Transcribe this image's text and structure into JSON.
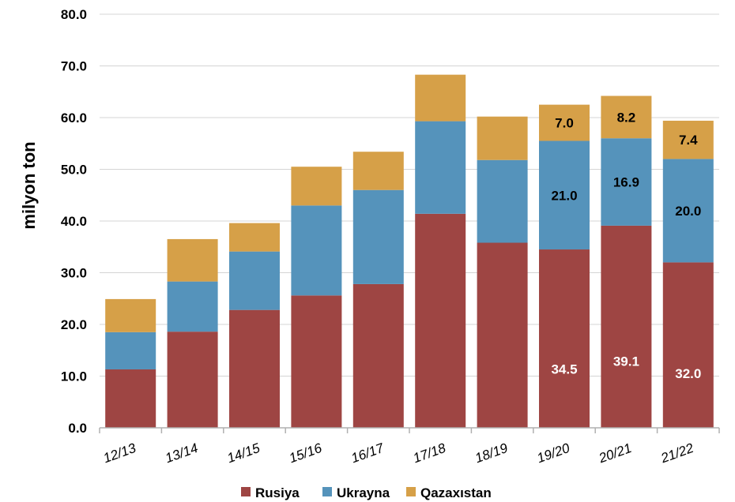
{
  "chart_data": {
    "type": "bar",
    "stacked": true,
    "ylabel": "milyon ton",
    "ylim": [
      0,
      80
    ],
    "yticks": [
      "0.0",
      "10.0",
      "20.0",
      "30.0",
      "40.0",
      "50.0",
      "60.0",
      "70.0",
      "80.0"
    ],
    "grid": "horizontal",
    "legend_position": "bottom",
    "categories": [
      "12/13",
      "13/14",
      "14/15",
      "15/16",
      "16/17",
      "17/18",
      "18/19",
      "19/20",
      "20/21",
      "21/22"
    ],
    "series": [
      {
        "name": "Rusiya",
        "color": "#9e4543",
        "values": [
          11.3,
          18.6,
          22.8,
          25.6,
          27.8,
          41.4,
          35.8,
          34.5,
          39.1,
          32.0
        ],
        "labels": [
          "",
          "",
          "",
          "",
          "",
          "",
          "",
          "34.5",
          "39.1",
          "32.0"
        ],
        "label_color": "#ffffff"
      },
      {
        "name": "Ukrayna",
        "color": "#5593bb",
        "values": [
          7.2,
          9.7,
          11.3,
          17.4,
          18.2,
          17.9,
          16.0,
          21.0,
          16.9,
          20.0
        ],
        "labels": [
          "",
          "",
          "",
          "",
          "",
          "",
          "",
          "21.0",
          "16.9",
          "20.0"
        ],
        "label_color": "#000000"
      },
      {
        "name": "Qazaxıstan",
        "color": "#d6a048",
        "values": [
          6.4,
          8.2,
          5.5,
          7.5,
          7.4,
          9.0,
          8.4,
          7.0,
          8.2,
          7.4
        ],
        "labels": [
          "",
          "",
          "",
          "",
          "",
          "",
          "",
          "7.0",
          "8.2",
          "7.4"
        ],
        "label_color": "#000000"
      }
    ]
  }
}
